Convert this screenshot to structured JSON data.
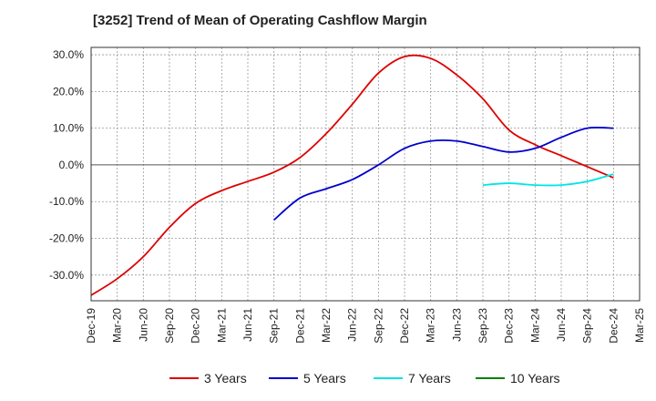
{
  "chart_data": {
    "type": "line",
    "title": "[3252]  Trend of Mean of Operating Cashflow Margin",
    "xlabel": "",
    "ylabel": "",
    "x_ticks": [
      "Dec-19",
      "Mar-20",
      "Jun-20",
      "Sep-20",
      "Dec-20",
      "Mar-21",
      "Jun-21",
      "Sep-21",
      "Dec-21",
      "Mar-22",
      "Jun-22",
      "Sep-22",
      "Dec-22",
      "Mar-23",
      "Jun-23",
      "Sep-23",
      "Dec-23",
      "Mar-24",
      "Jun-24",
      "Sep-24",
      "Dec-24",
      "Mar-25"
    ],
    "y_ticks": [
      "30.0%",
      "20.0%",
      "10.0%",
      "0.0%",
      "-10.0%",
      "-20.0%",
      "-30.0%"
    ],
    "y_tick_values": [
      30,
      20,
      10,
      0,
      -10,
      -20,
      -30
    ],
    "ylim": [
      -37,
      32
    ],
    "grid": true,
    "legend_position": "bottom",
    "series": [
      {
        "name": "3 Years",
        "color": "#dd0000",
        "points": [
          [
            "Dec-19",
            -35.5
          ],
          [
            "Mar-20",
            -31
          ],
          [
            "Jun-20",
            -25
          ],
          [
            "Sep-20",
            -17
          ],
          [
            "Dec-20",
            -10.5
          ],
          [
            "Mar-21",
            -7
          ],
          [
            "Jun-21",
            -4.5
          ],
          [
            "Sep-21",
            -2
          ],
          [
            "Dec-21",
            2
          ],
          [
            "Mar-22",
            8.5
          ],
          [
            "Jun-22",
            16.5
          ],
          [
            "Sep-22",
            25
          ],
          [
            "Dec-22",
            29.5
          ],
          [
            "Mar-23",
            29
          ],
          [
            "Jun-23",
            24.5
          ],
          [
            "Sep-23",
            18
          ],
          [
            "Dec-23",
            9.5
          ],
          [
            "Mar-24",
            5.5
          ],
          [
            "Jun-24",
            2.5
          ],
          [
            "Sep-24",
            -0.5
          ],
          [
            "Dec-24",
            -3.5
          ]
        ]
      },
      {
        "name": "5 Years",
        "color": "#0000cc",
        "points": [
          [
            "Sep-21",
            -15
          ],
          [
            "Dec-21",
            -9
          ],
          [
            "Mar-22",
            -6.5
          ],
          [
            "Jun-22",
            -4
          ],
          [
            "Sep-22",
            0
          ],
          [
            "Dec-22",
            4.5
          ],
          [
            "Mar-23",
            6.5
          ],
          [
            "Jun-23",
            6.5
          ],
          [
            "Sep-23",
            5
          ],
          [
            "Dec-23",
            3.5
          ],
          [
            "Mar-24",
            4.5
          ],
          [
            "Jun-24",
            7.5
          ],
          [
            "Sep-24",
            10
          ],
          [
            "Dec-24",
            10
          ]
        ]
      },
      {
        "name": "7 Years",
        "color": "#00e5e5",
        "points": [
          [
            "Sep-23",
            -5.5
          ],
          [
            "Dec-23",
            -5
          ],
          [
            "Mar-24",
            -5.5
          ],
          [
            "Jun-24",
            -5.5
          ],
          [
            "Sep-24",
            -4.5
          ],
          [
            "Dec-24",
            -2.5
          ]
        ]
      },
      {
        "name": "10 Years",
        "color": "#008000",
        "points": []
      }
    ]
  }
}
